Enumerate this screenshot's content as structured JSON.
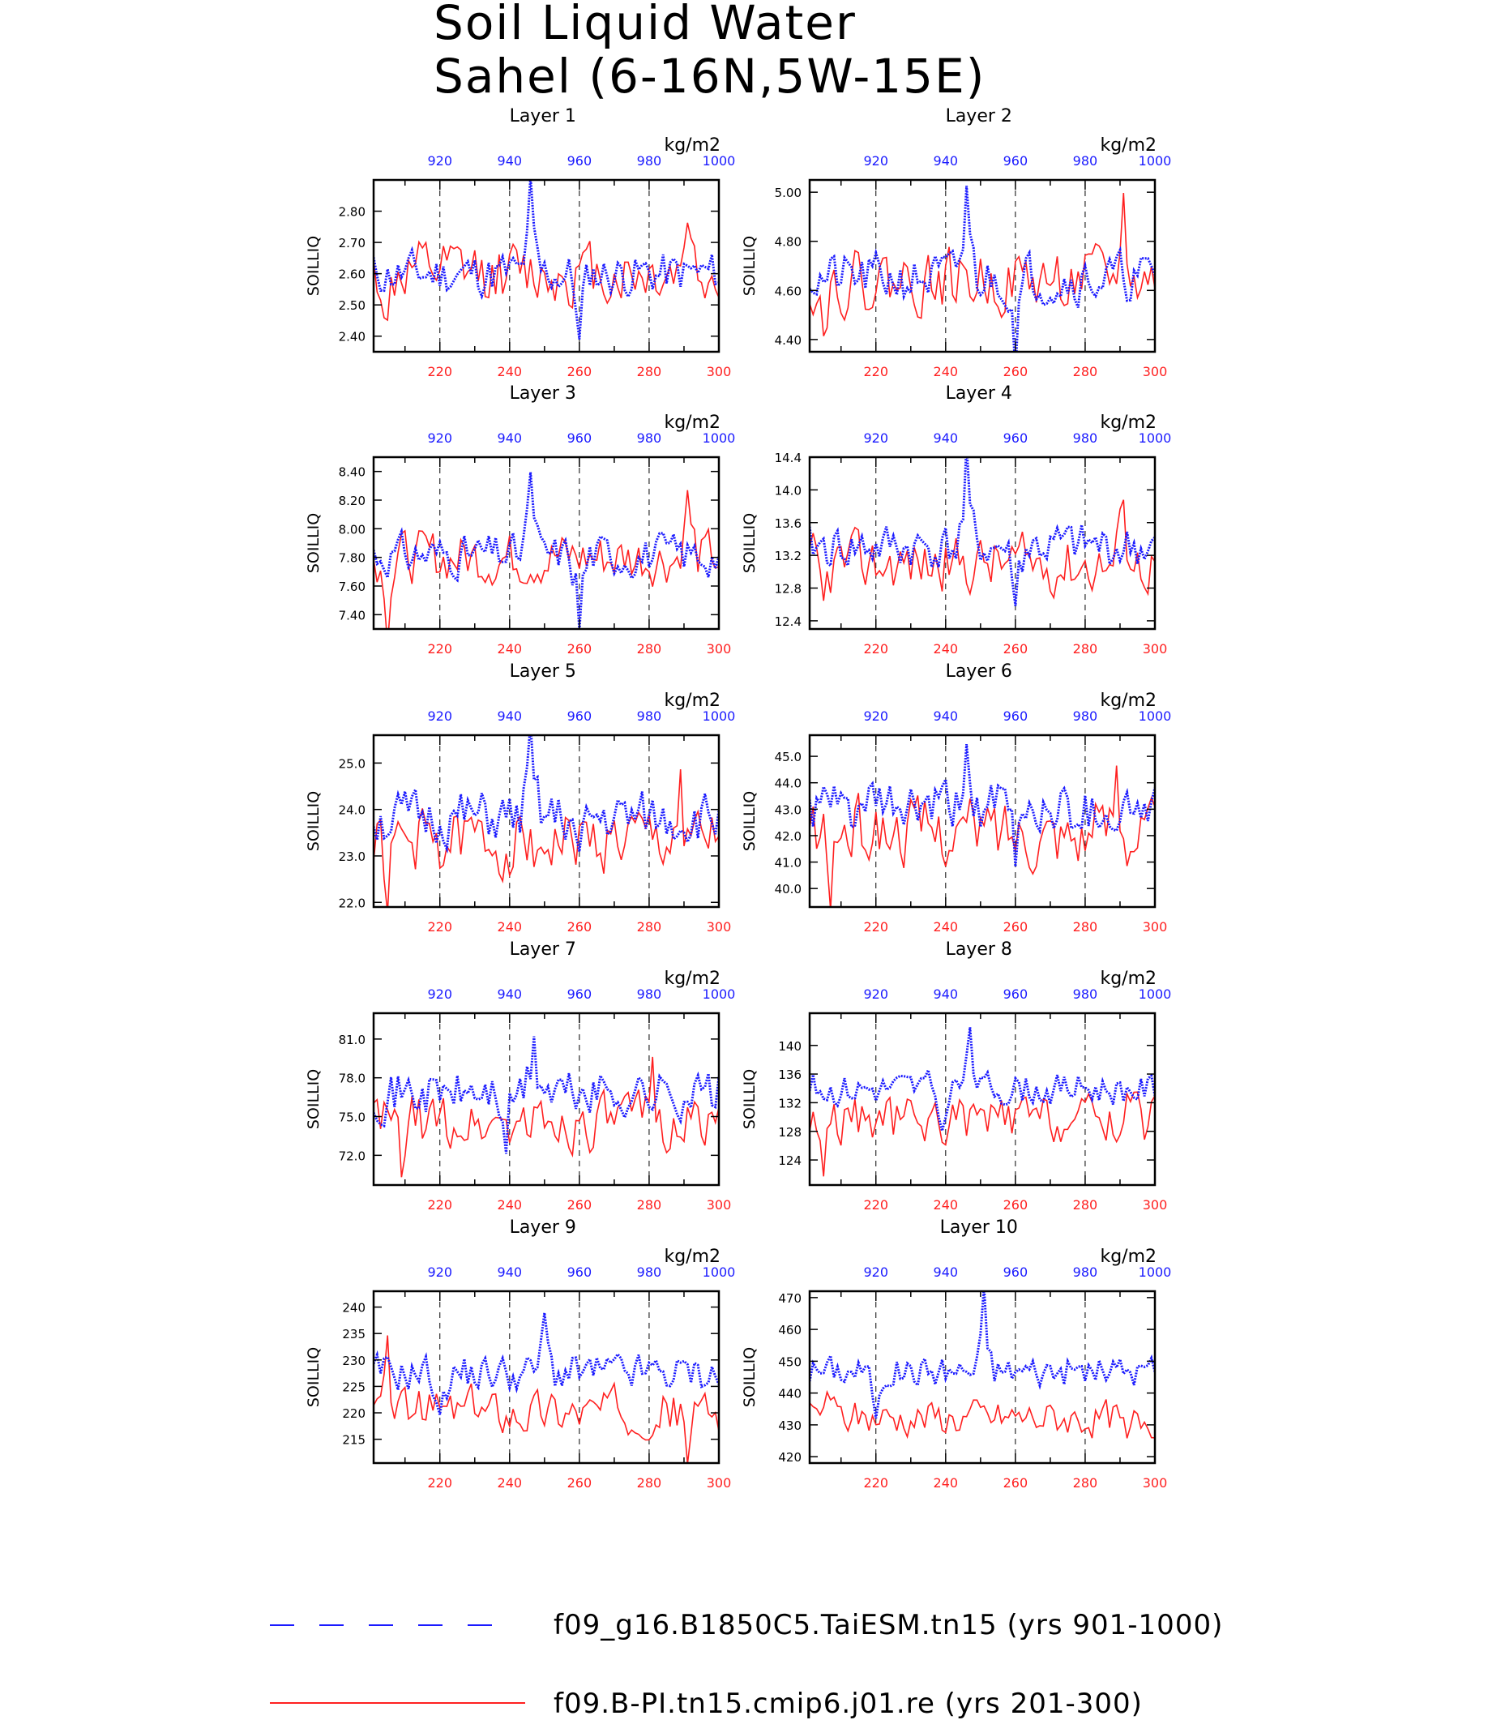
{
  "title": [
    "Soil Liquid Water",
    "Sahel (6-16N,5W-15E)"
  ],
  "units": "kg/m2",
  "ylabel": "SOILLIQ",
  "colors": {
    "dataset_a": "#1a1aff",
    "dataset_b": "#ff2020",
    "axes": "#000000"
  },
  "legend": [
    {
      "label": "f09_g16.B1850C5.TaiESM.tn15 (yrs 901-1000)",
      "color": "#1a1aff",
      "style": "dashed"
    },
    {
      "label": "f09.B-PI.tn15.cmip6.j01.re (yrs 201-300)",
      "color": "#ff2020",
      "style": "solid"
    }
  ],
  "chart_data": [
    {
      "type": "line",
      "title": "Layer 1",
      "ylabel": "SOILLIQ",
      "units": "kg/m2",
      "x_bottom": {
        "range": [
          201,
          300
        ],
        "ticks": [
          "220",
          "240",
          "260",
          "280",
          "300"
        ]
      },
      "x_top": {
        "range": [
          901,
          1000
        ],
        "ticks": [
          "920",
          "940",
          "960",
          "980",
          "1000"
        ]
      },
      "ylim": [
        2.35,
        2.9
      ],
      "yticks": [
        2.4,
        2.5,
        2.6,
        2.7,
        2.8
      ],
      "ytick_labels": [
        "2.40",
        "2.50",
        "2.60",
        "2.70",
        "2.80"
      ],
      "series": [
        {
          "name": "f09_g16.B1850C5.TaiESM.tn15 (yrs 901-1000)",
          "axis": "top",
          "mean": 2.6,
          "amp": 0.05,
          "peaks": [
            [
              946,
              0.26
            ],
            [
              960,
              -0.22
            ]
          ],
          "seed": 11
        },
        {
          "name": "f09.B-PI.tn15.cmip6.j01.re (yrs 201-300)",
          "axis": "bottom",
          "mean": 2.6,
          "amp": 0.07,
          "peaks": [
            [
              205,
              -0.18
            ],
            [
              291,
              0.22
            ]
          ],
          "seed": 12
        }
      ]
    },
    {
      "type": "line",
      "title": "Layer 2",
      "ylabel": "SOILLIQ",
      "units": "kg/m2",
      "x_bottom": {
        "range": [
          201,
          300
        ],
        "ticks": [
          "220",
          "240",
          "260",
          "280",
          "300"
        ]
      },
      "x_top": {
        "range": [
          901,
          1000
        ],
        "ticks": [
          "920",
          "940",
          "960",
          "980",
          "1000"
        ]
      },
      "ylim": [
        4.35,
        5.05
      ],
      "yticks": [
        4.4,
        4.6,
        4.8,
        5.0
      ],
      "ytick_labels": [
        "4.40",
        "4.60",
        "4.80",
        "5.00"
      ],
      "series": [
        {
          "name": "f09_g16.B1850C5.TaiESM.tn15 (yrs 901-1000)",
          "axis": "top",
          "mean": 4.65,
          "amp": 0.07,
          "peaks": [
            [
              946,
              0.38
            ],
            [
              960,
              -0.28
            ]
          ],
          "seed": 21
        },
        {
          "name": "f09.B-PI.tn15.cmip6.j01.re (yrs 201-300)",
          "axis": "bottom",
          "mean": 4.64,
          "amp": 0.09,
          "peaks": [
            [
              205,
              -0.22
            ],
            [
              291,
              0.28
            ]
          ],
          "seed": 22
        }
      ]
    },
    {
      "type": "line",
      "title": "Layer 3",
      "ylabel": "SOILLIQ",
      "units": "kg/m2",
      "x_bottom": {
        "range": [
          201,
          300
        ],
        "ticks": [
          "220",
          "240",
          "260",
          "280",
          "300"
        ]
      },
      "x_top": {
        "range": [
          901,
          1000
        ],
        "ticks": [
          "920",
          "940",
          "960",
          "980",
          "1000"
        ]
      },
      "ylim": [
        7.3,
        8.5
      ],
      "yticks": [
        7.4,
        7.6,
        7.8,
        8.0,
        8.2,
        8.4
      ],
      "ytick_labels": [
        "7.40",
        "7.60",
        "7.80",
        "8.00",
        "8.20",
        "8.40"
      ],
      "series": [
        {
          "name": "f09_g16.B1850C5.TaiESM.tn15 (yrs 901-1000)",
          "axis": "top",
          "mean": 7.82,
          "amp": 0.1,
          "peaks": [
            [
              946,
              0.6
            ],
            [
              960,
              -0.5
            ]
          ],
          "seed": 31
        },
        {
          "name": "f09.B-PI.tn15.cmip6.j01.re (yrs 201-300)",
          "axis": "bottom",
          "mean": 7.8,
          "amp": 0.13,
          "peaks": [
            [
              205,
              -0.42
            ],
            [
              291,
              0.48
            ]
          ],
          "seed": 32
        }
      ]
    },
    {
      "type": "line",
      "title": "Layer 4",
      "ylabel": "SOILLIQ",
      "units": "kg/m2",
      "x_bottom": {
        "range": [
          201,
          300
        ],
        "ticks": [
          "220",
          "240",
          "260",
          "280",
          "300"
        ]
      },
      "x_top": {
        "range": [
          901,
          1000
        ],
        "ticks": [
          "920",
          "940",
          "960",
          "980",
          "1000"
        ]
      },
      "ylim": [
        12.3,
        14.4
      ],
      "yticks": [
        12.4,
        12.8,
        13.2,
        13.6,
        14.0,
        14.4
      ],
      "ytick_labels": [
        "12.4",
        "12.8",
        "13.2",
        "13.6",
        "14.0",
        "14.4"
      ],
      "series": [
        {
          "name": "f09_g16.B1850C5.TaiESM.tn15 (yrs 901-1000)",
          "axis": "top",
          "mean": 13.3,
          "amp": 0.2,
          "peaks": [
            [
              946,
              1.0
            ],
            [
              960,
              -0.75
            ]
          ],
          "seed": 41
        },
        {
          "name": "f09.B-PI.tn15.cmip6.j01.re (yrs 201-300)",
          "axis": "bottom",
          "mean": 13.1,
          "amp": 0.25,
          "peaks": [
            [
              205,
              -0.65
            ],
            [
              291,
              0.95
            ]
          ],
          "seed": 42
        }
      ]
    },
    {
      "type": "line",
      "title": "Layer 5",
      "ylabel": "SOILLIQ",
      "units": "kg/m2",
      "x_bottom": {
        "range": [
          201,
          300
        ],
        "ticks": [
          "220",
          "240",
          "260",
          "280",
          "300"
        ]
      },
      "x_top": {
        "range": [
          901,
          1000
        ],
        "ticks": [
          "920",
          "940",
          "960",
          "980",
          "1000"
        ]
      },
      "ylim": [
        21.9,
        25.6
      ],
      "yticks": [
        22.0,
        23.0,
        24.0,
        25.0
      ],
      "ytick_labels": [
        "22.0",
        "23.0",
        "24.0",
        "25.0"
      ],
      "series": [
        {
          "name": "f09_g16.B1850C5.TaiESM.tn15 (yrs 901-1000)",
          "axis": "top",
          "mean": 23.8,
          "amp": 0.4,
          "peaks": [
            [
              946,
              1.6
            ],
            [
              960,
              -1.2
            ]
          ],
          "seed": 51
        },
        {
          "name": "f09.B-PI.tn15.cmip6.j01.re (yrs 201-300)",
          "axis": "bottom",
          "mean": 23.3,
          "amp": 0.5,
          "peaks": [
            [
              205,
              -1.2
            ],
            [
              289,
              1.4
            ]
          ],
          "seed": 52
        }
      ]
    },
    {
      "type": "line",
      "title": "Layer 6",
      "ylabel": "SOILLIQ",
      "units": "kg/m2",
      "x_bottom": {
        "range": [
          201,
          300
        ],
        "ticks": [
          "220",
          "240",
          "260",
          "280",
          "300"
        ]
      },
      "x_top": {
        "range": [
          901,
          1000
        ],
        "ticks": [
          "920",
          "940",
          "960",
          "980",
          "1000"
        ]
      },
      "ylim": [
        39.3,
        45.8
      ],
      "yticks": [
        40.0,
        41.0,
        42.0,
        43.0,
        44.0,
        45.0
      ],
      "ytick_labels": [
        "40.0",
        "41.0",
        "42.0",
        "43.0",
        "44.0",
        "45.0"
      ],
      "series": [
        {
          "name": "f09_g16.B1850C5.TaiESM.tn15 (yrs 901-1000)",
          "axis": "top",
          "mean": 43.0,
          "amp": 0.7,
          "peaks": [
            [
              946,
              2.6
            ],
            [
              960,
              -2.0
            ]
          ],
          "seed": 61
        },
        {
          "name": "f09.B-PI.tn15.cmip6.j01.re (yrs 201-300)",
          "axis": "bottom",
          "mean": 42.2,
          "amp": 0.9,
          "peaks": [
            [
              207,
              -2.4
            ],
            [
              289,
              2.6
            ]
          ],
          "seed": 62
        }
      ]
    },
    {
      "type": "line",
      "title": "Layer 7",
      "ylabel": "SOILLIQ",
      "units": "kg/m2",
      "x_bottom": {
        "range": [
          201,
          300
        ],
        "ticks": [
          "220",
          "240",
          "260",
          "280",
          "300"
        ]
      },
      "x_top": {
        "range": [
          901,
          1000
        ],
        "ticks": [
          "920",
          "940",
          "960",
          "980",
          "1000"
        ]
      },
      "ylim": [
        69.7,
        83.0
      ],
      "yticks": [
        72.0,
        75.0,
        78.0,
        81.0
      ],
      "ytick_labels": [
        "72.0",
        "75.0",
        "78.0",
        "81.0"
      ],
      "series": [
        {
          "name": "f09_g16.B1850C5.TaiESM.tn15 (yrs 901-1000)",
          "axis": "top",
          "mean": 76.8,
          "amp": 1.3,
          "peaks": [
            [
              947,
              4.5
            ],
            [
              939,
              -4.0
            ]
          ],
          "seed": 71
        },
        {
          "name": "f09.B-PI.tn15.cmip6.j01.re (yrs 201-300)",
          "axis": "bottom",
          "mean": 74.5,
          "amp": 1.5,
          "peaks": [
            [
              209,
              -3.8
            ],
            [
              281,
              4.0
            ]
          ],
          "seed": 72
        }
      ]
    },
    {
      "type": "line",
      "title": "Layer 8",
      "ylabel": "SOILLIQ",
      "units": "kg/m2",
      "x_bottom": {
        "range": [
          201,
          300
        ],
        "ticks": [
          "220",
          "240",
          "260",
          "280",
          "300"
        ]
      },
      "x_top": {
        "range": [
          901,
          1000
        ],
        "ticks": [
          "920",
          "940",
          "960",
          "980",
          "1000"
        ]
      },
      "ylim": [
        120.5,
        144.5
      ],
      "yticks": [
        124,
        128,
        132,
        136,
        140
      ],
      "ytick_labels": [
        "124",
        "128",
        "132",
        "136",
        "140"
      ],
      "series": [
        {
          "name": "f09_g16.B1850C5.TaiESM.tn15 (yrs 901-1000)",
          "axis": "top",
          "mean": 134.0,
          "amp": 1.6,
          "peaks": [
            [
              947,
              8.0
            ],
            [
              939,
              -7.0
            ]
          ],
          "seed": 81
        },
        {
          "name": "f09.B-PI.tn15.cmip6.j01.re (yrs 201-300)",
          "axis": "bottom",
          "mean": 129.5,
          "amp": 2.4,
          "peaks": [
            [
              205,
              -6.0
            ],
            [
              294,
              6.5
            ]
          ],
          "seed": 82
        }
      ]
    },
    {
      "type": "line",
      "title": "Layer 9",
      "ylabel": "SOILLIQ",
      "units": "kg/m2",
      "x_bottom": {
        "range": [
          201,
          300
        ],
        "ticks": [
          "220",
          "240",
          "260",
          "280",
          "300"
        ]
      },
      "x_top": {
        "range": [
          901,
          1000
        ],
        "ticks": [
          "920",
          "940",
          "960",
          "980",
          "1000"
        ]
      },
      "ylim": [
        210.5,
        243.0
      ],
      "yticks": [
        215,
        220,
        225,
        230,
        235,
        240
      ],
      "ytick_labels": [
        "215",
        "220",
        "225",
        "230",
        "235",
        "240"
      ],
      "series": [
        {
          "name": "f09_g16.B1850C5.TaiESM.tn15 (yrs 901-1000)",
          "axis": "top",
          "mean": 227.5,
          "amp": 2.5,
          "peaks": [
            [
              950,
              11.0
            ],
            [
              920,
              -10.0
            ]
          ],
          "seed": 91
        },
        {
          "name": "f09.B-PI.tn15.cmip6.j01.re (yrs 201-300)",
          "axis": "bottom",
          "mean": 220.5,
          "amp": 3.0,
          "peaks": [
            [
              205,
              10.0
            ],
            [
              291,
              -8.0
            ]
          ],
          "seed": 92
        }
      ]
    },
    {
      "type": "line",
      "title": "Layer 10",
      "ylabel": "SOILLIQ",
      "units": "kg/m2",
      "x_bottom": {
        "range": [
          201,
          300
        ],
        "ticks": [
          "220",
          "240",
          "260",
          "280",
          "300"
        ]
      },
      "x_top": {
        "range": [
          901,
          1000
        ],
        "ticks": [
          "920",
          "940",
          "960",
          "980",
          "1000"
        ]
      },
      "ylim": [
        418.0,
        472.0
      ],
      "yticks": [
        420,
        430,
        440,
        450,
        460,
        470
      ],
      "ytick_labels": [
        "420",
        "430",
        "440",
        "450",
        "460",
        "470"
      ],
      "series": [
        {
          "name": "f09_g16.B1850C5.TaiESM.tn15 (yrs 901-1000)",
          "axis": "top",
          "mean": 447.0,
          "amp": 3.5,
          "peaks": [
            [
              951,
              22.0
            ],
            [
              920,
              -17.0
            ]
          ],
          "seed": 101
        },
        {
          "name": "f09.B-PI.tn15.cmip6.j01.re (yrs 201-300)",
          "axis": "bottom",
          "mean": 432.0,
          "amp": 4.0,
          "peaks": [
            [
              206,
              10.0
            ],
            [
              292,
              -11.0
            ]
          ],
          "seed": 102
        }
      ]
    }
  ]
}
